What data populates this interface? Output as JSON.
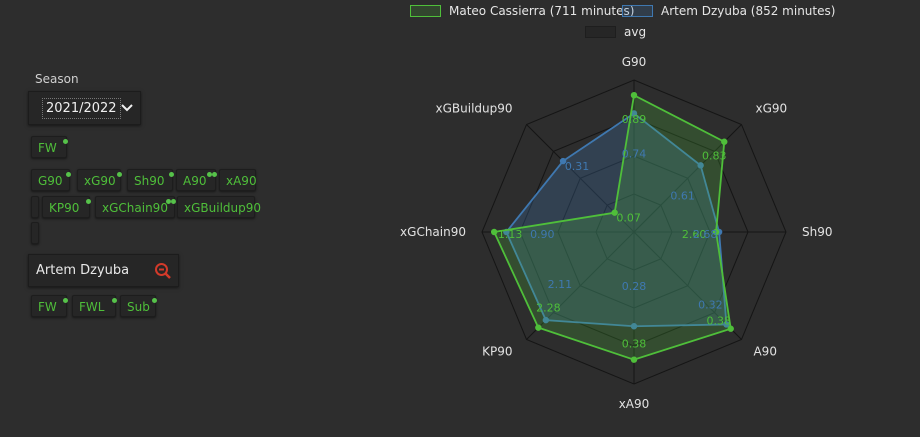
{
  "filters": {
    "season_label": "Season",
    "season_value": "2021/2022",
    "position_tags": [
      "FW"
    ],
    "metric_tags": [
      "G90",
      "xG90",
      "Sh90",
      "A90",
      "xA90",
      "KP90",
      "xGChain90",
      "xGBuildup90"
    ],
    "search_value": "Artem Dzyuba",
    "player_position_tags": [
      "FW",
      "FWL",
      "Sub"
    ]
  },
  "icons": {
    "dropdown": "chevron-down-icon",
    "search": "zoom-out-icon"
  },
  "colors": {
    "background": "#2d2d2d",
    "series1": "#4fbf3a",
    "series2": "#3f78b0",
    "avg": "#1e1e1e",
    "grid": "#151515",
    "search_icon": "#d23a2a"
  },
  "chart_data": {
    "type": "radar",
    "axes": [
      "G90",
      "xG90",
      "Sh90",
      "A90",
      "xA90",
      "KP90",
      "xGChain90",
      "xGBuildup90"
    ],
    "series": [
      {
        "name": "Mateo Cassierra (711 minutes)",
        "values": [
          0.89,
          0.83,
          2.6,
          0.38,
          0.38,
          2.28,
          1.13,
          0.07
        ],
        "labels": [
          "0.89",
          "0.83",
          "2.60",
          "0.38",
          "0.38",
          "2.28",
          "1.13",
          "0.07"
        ]
      },
      {
        "name": "Artem Dzyuba (852 minutes)",
        "values": [
          0.74,
          0.61,
          2.68,
          0.32,
          0.28,
          2.11,
          0.9,
          0.31
        ],
        "labels": [
          "0.74",
          "0.61",
          "2.68",
          "0.32",
          "0.28",
          "2.11",
          "0.90",
          "0.31"
        ]
      }
    ],
    "avg_label": "avg",
    "scale_max_fraction": {
      "Mateo Cassierra (711 minutes)": [
        0.9,
        0.84,
        0.54,
        0.9,
        0.84,
        0.89,
        0.92,
        0.18
      ],
      "Artem Dzyuba (852 minutes)": [
        0.78,
        0.62,
        0.56,
        0.86,
        0.62,
        0.82,
        0.84,
        0.66
      ]
    },
    "grid_levels": 4,
    "legend_position": "top"
  }
}
